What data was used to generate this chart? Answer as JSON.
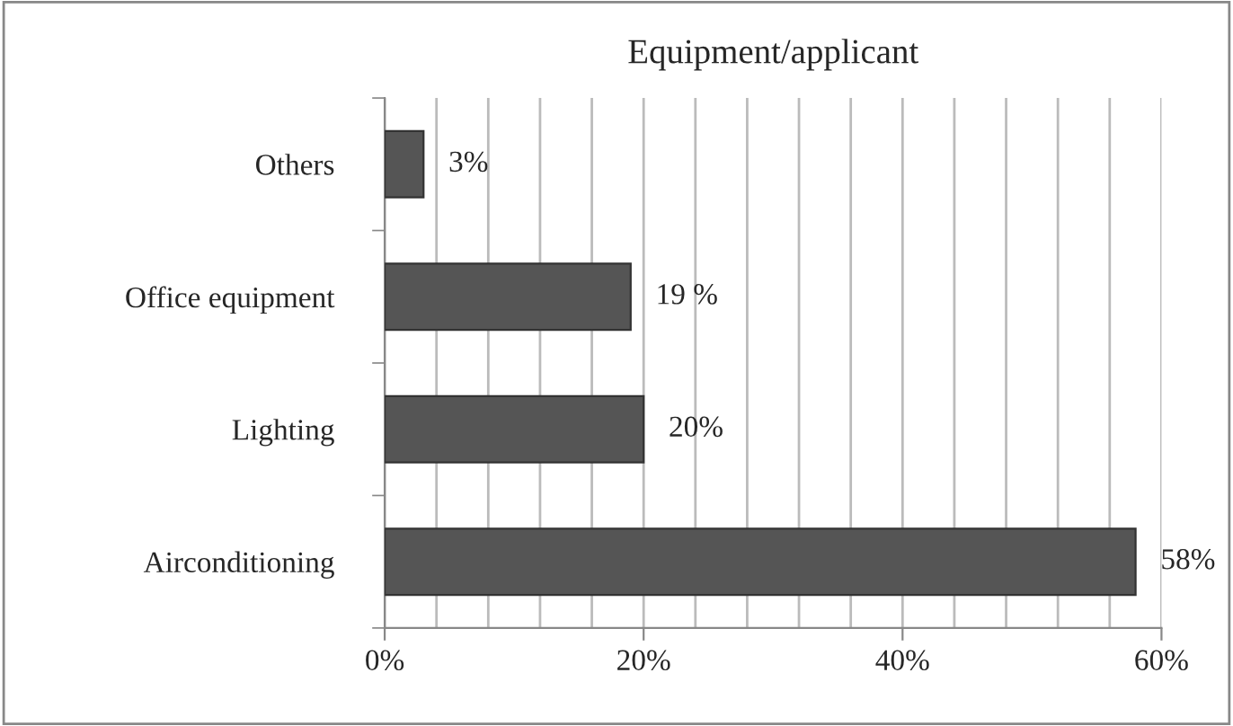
{
  "chart_data": {
    "type": "bar",
    "orientation": "horizontal",
    "title": "Equipment/applicant",
    "categories": [
      "Others",
      "Office equipment",
      "Lighting",
      "Airconditioning"
    ],
    "values": [
      3,
      19,
      20,
      58
    ],
    "value_labels": [
      "3%",
      "19 %",
      "20%",
      "58%"
    ],
    "color": "#555555",
    "xlim": [
      0,
      60
    ],
    "xticks": [
      {
        "value": 0,
        "label": "0%"
      },
      {
        "value": 4,
        "label": null
      },
      {
        "value": 8,
        "label": null
      },
      {
        "value": 12,
        "label": null
      },
      {
        "value": 16,
        "label": null
      },
      {
        "value": 20,
        "label": "20%"
      },
      {
        "value": 24,
        "label": null
      },
      {
        "value": 28,
        "label": null
      },
      {
        "value": 32,
        "label": null
      },
      {
        "value": 36,
        "label": null
      },
      {
        "value": 40,
        "label": "40%"
      },
      {
        "value": 44,
        "label": null
      },
      {
        "value": 48,
        "label": null
      },
      {
        "value": 52,
        "label": null
      },
      {
        "value": 56,
        "label": null
      },
      {
        "value": 60,
        "label": "60%"
      }
    ],
    "grid": "x",
    "legend": false
  }
}
